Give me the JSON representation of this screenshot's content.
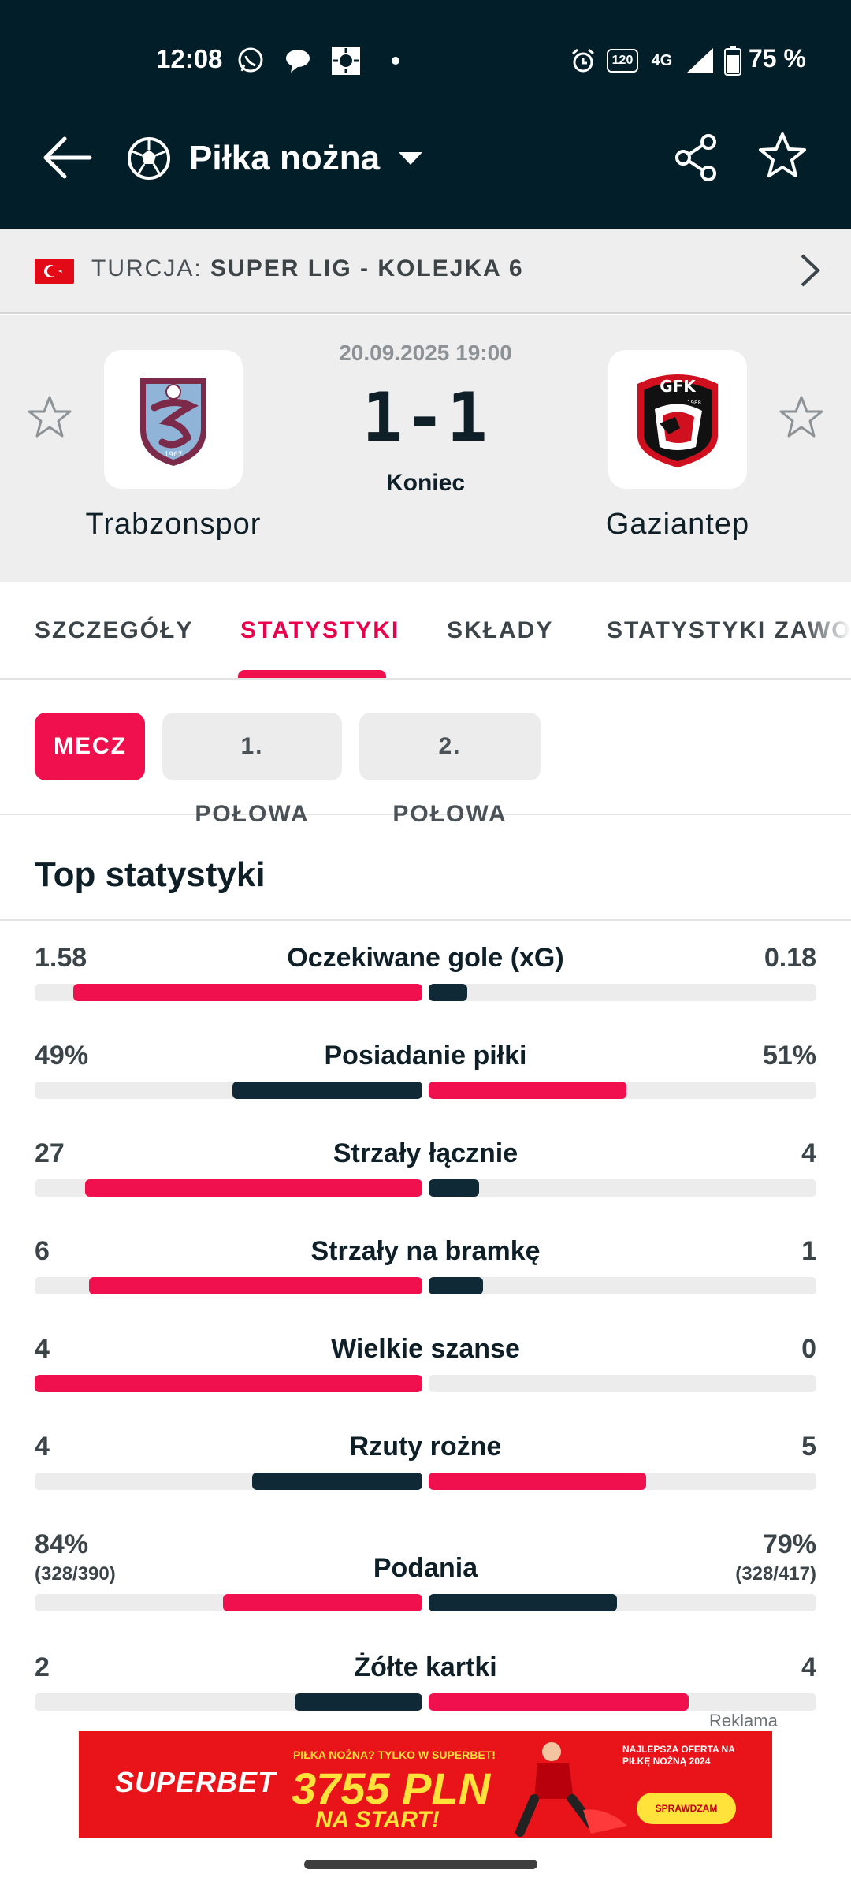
{
  "status_bar": {
    "time": "12:08",
    "network": "4G",
    "battery": "75 %",
    "refresh": "120"
  },
  "app_bar": {
    "sport": "Piłka nożna"
  },
  "league": {
    "country": "TURCJA:",
    "competition": "SUPER LIG - KOLEJKA 6"
  },
  "match": {
    "datetime": "20.09.2025 19:00",
    "score": "1-1",
    "status": "Koniec",
    "home": {
      "name": "Trabzonspor",
      "logo_year": "1967"
    },
    "away": {
      "name": "Gaziantep",
      "logo_abbr": "GFK",
      "logo_year": "1988"
    }
  },
  "tabs": [
    {
      "label": "SZCZEGÓŁY"
    },
    {
      "label": "STATYSTYKI"
    },
    {
      "label": "SKŁADY"
    },
    {
      "label": "STATYSTYKI ZAWODNIKÓW"
    }
  ],
  "active_tab": "STATYSTYKI",
  "periods": [
    {
      "label": "MECZ"
    },
    {
      "label": "1. POŁOWA"
    },
    {
      "label": "2. POŁOWA"
    }
  ],
  "section_title": "Top statystyki",
  "colors": {
    "accent": "#f0104e",
    "dark": "#0f2a36",
    "track": "#ececec",
    "header_bg": "#021e28"
  },
  "stats": [
    {
      "name": "Oczekiwane gole (xG)",
      "home": "1.58",
      "away": "0.18",
      "home_share": 0.9,
      "away_share": 0.1,
      "leader": "home"
    },
    {
      "name": "Posiadanie piłki",
      "home": "49%",
      "away": "51%",
      "home_share": 0.49,
      "away_share": 0.51,
      "leader": "away"
    },
    {
      "name": "Strzały łącznie",
      "home": "27",
      "away": "4",
      "home_share": 0.87,
      "away_share": 0.13,
      "leader": "home"
    },
    {
      "name": "Strzały na bramkę",
      "home": "6",
      "away": "1",
      "home_share": 0.86,
      "away_share": 0.14,
      "leader": "home"
    },
    {
      "name": "Wielkie szanse",
      "home": "4",
      "away": "0",
      "home_share": 1.0,
      "away_share": 0.0,
      "leader": "home"
    },
    {
      "name": "Rzuty rożne",
      "home": "4",
      "away": "5",
      "home_share": 0.44,
      "away_share": 0.56,
      "leader": "away"
    },
    {
      "name": "Podania",
      "home": "84%",
      "away": "79%",
      "home_sub": "(328/390)",
      "away_sub": "(328/417)",
      "home_share": 0.515,
      "away_share": 0.485,
      "leader": "home"
    },
    {
      "name": "Żółte kartki",
      "home": "2",
      "away": "4",
      "home_share": 0.33,
      "away_share": 0.67,
      "leader": "away"
    }
  ],
  "ad": {
    "label": "Reklama",
    "brand": "SUPERBET",
    "headline": "PIŁKA NOŻNA? TYLKO W SUPERBET!",
    "amount": "3755 PLN",
    "subline": "NA START!",
    "offer": "NAJLEPSZA OFERTA NA PIŁKĘ NOŻNĄ 2024",
    "cta": "SPRAWDZAM"
  }
}
